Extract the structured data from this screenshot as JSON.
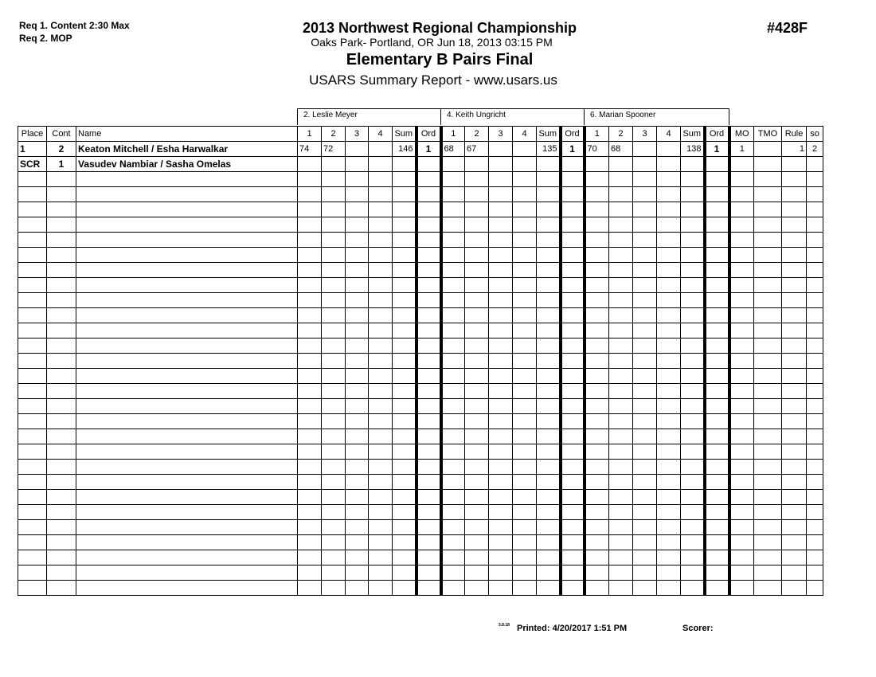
{
  "requirements": [
    "Req  1.  Content 2:30 Max",
    "Req  2.  MOP"
  ],
  "header": {
    "title": "2013 Northwest Regional Championship",
    "location": "Oaks Park- Portland, OR  Jun 18, 2013  03:15 PM",
    "event": "Elementary B Pairs Final",
    "report": "USARS Summary Report - www.usars.us",
    "event_number": "#428F"
  },
  "judges": [
    "2.  Leslie Meyer",
    "4.  Keith Ungricht",
    "6.  Marian Spooner"
  ],
  "columns": {
    "place": "Place",
    "cont": "Cont",
    "name": "Name",
    "judge_cols": [
      "1",
      "2",
      "3",
      "4",
      "Sum",
      "Ord"
    ],
    "mo": "MO",
    "tmo": "TMO",
    "rule": "Rule",
    "so": "so"
  },
  "rows": [
    {
      "place": "1",
      "cont": "2",
      "name": "Keaton Mitchell / Esha Harwalkar",
      "judges": [
        [
          "74",
          "72",
          "",
          "",
          "146",
          "1"
        ],
        [
          "68",
          "67",
          "",
          "",
          "135",
          "1"
        ],
        [
          "70",
          "68",
          "",
          "",
          "138",
          "1"
        ]
      ],
      "mo": "1",
      "tmo": "",
      "rule": "1",
      "so": "2"
    },
    {
      "place": "SCR",
      "cont": "1",
      "name": "Vasudev Nambiar / Sasha Omelas",
      "judges": [
        [
          "",
          "",
          "",
          "",
          "",
          ""
        ],
        [
          "",
          "",
          "",
          "",
          "",
          ""
        ],
        [
          "",
          "",
          "",
          "",
          "",
          ""
        ]
      ],
      "mo": "",
      "tmo": "",
      "rule": "",
      "so": ""
    }
  ],
  "footer": {
    "version": "3.8.18",
    "printed": "Printed:  4/20/2017  1:51 PM",
    "scorer": "Scorer:"
  }
}
